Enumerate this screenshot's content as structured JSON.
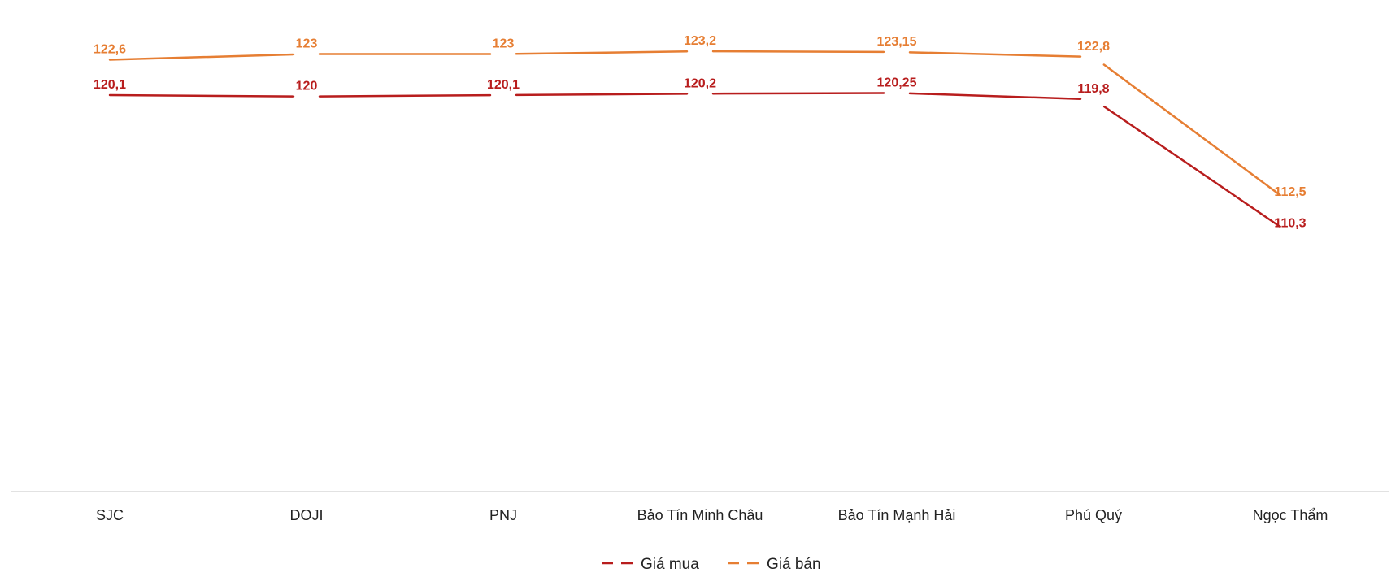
{
  "chart_data": {
    "type": "line",
    "categories": [
      "SJC",
      "DOJI",
      "PNJ",
      "Bảo Tín Minh Châu",
      "Bảo Tín Mạnh Hải",
      "Phú Quý",
      "Ngọc Thẩm"
    ],
    "series": [
      {
        "name": "Giá mua",
        "color": "#b81d1d",
        "values": [
          120.1,
          120,
          120.1,
          120.2,
          120.25,
          119.8,
          110.3
        ],
        "labels": [
          "120,1",
          "120",
          "120,1",
          "120,2",
          "120,25",
          "119,8",
          "110,3"
        ]
      },
      {
        "name": "Giá bán",
        "color": "#e67e33",
        "values": [
          122.6,
          123,
          123,
          123.2,
          123.15,
          122.8,
          112.5
        ],
        "labels": [
          "122,6",
          "123",
          "123",
          "123,2",
          "123,15",
          "122,8",
          "112,5"
        ]
      }
    ],
    "grid": false,
    "legend_position": "bottom"
  }
}
